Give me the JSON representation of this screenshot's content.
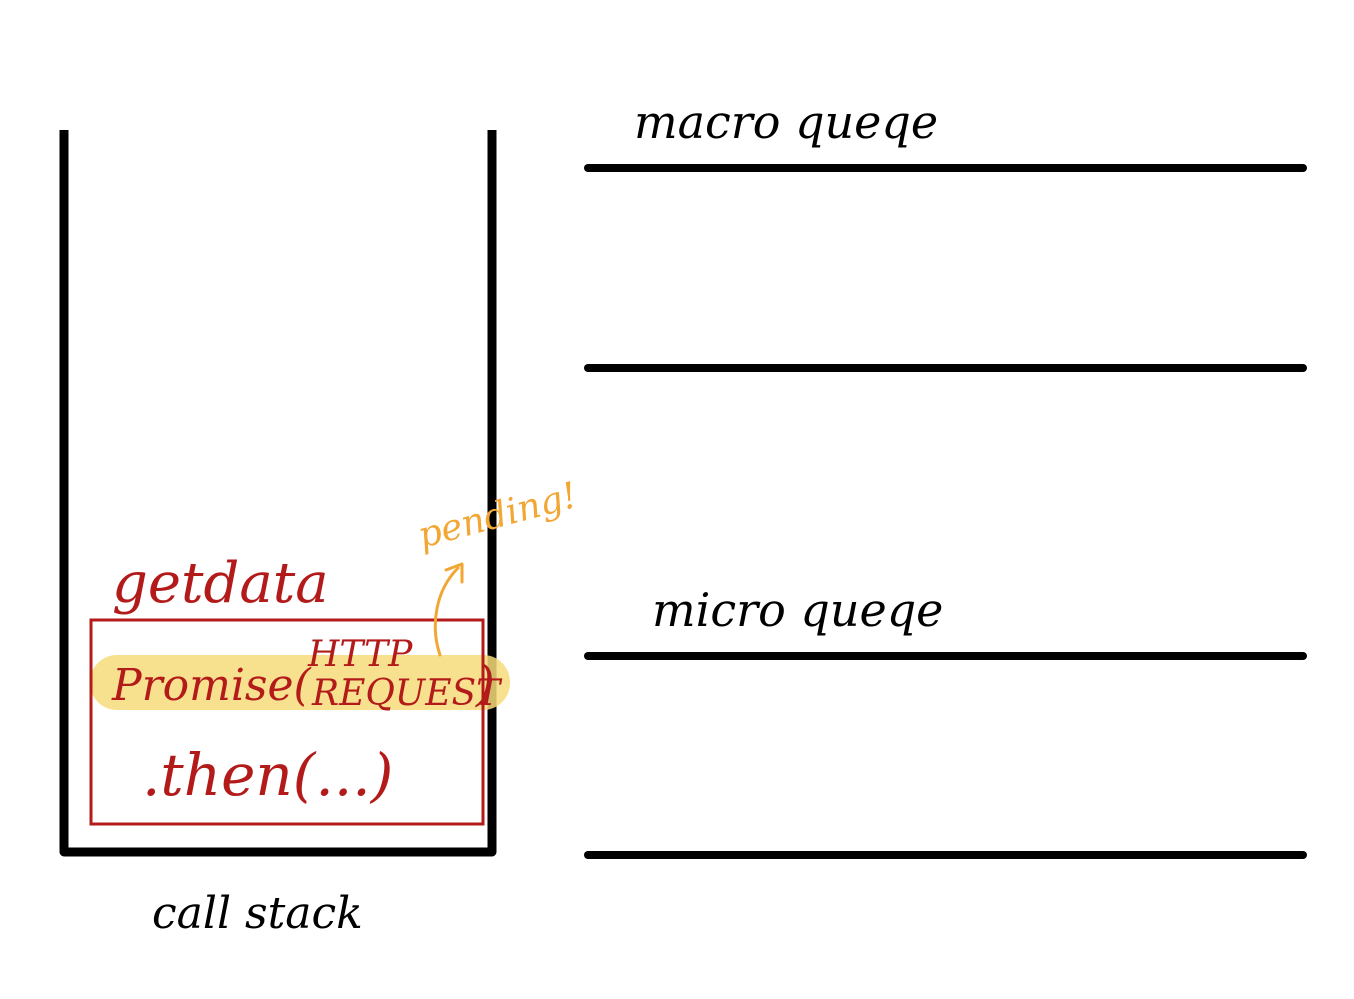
{
  "call_stack": {
    "label": "call stack",
    "function_label": "getdata",
    "frame": {
      "promise_text": "Promise(",
      "request_line1": "HTTP",
      "request_line2": "REQUEST",
      "close_paren": ")",
      "then_text": ".then(...)"
    },
    "annotation": "pending!"
  },
  "queues": {
    "macro": {
      "label": "macro queqe"
    },
    "micro": {
      "label": "micro queqe"
    }
  },
  "colors": {
    "ink": "#000000",
    "red": "#b31b1b",
    "highlight": "#f7dc7a",
    "orange": "#f2a633"
  }
}
